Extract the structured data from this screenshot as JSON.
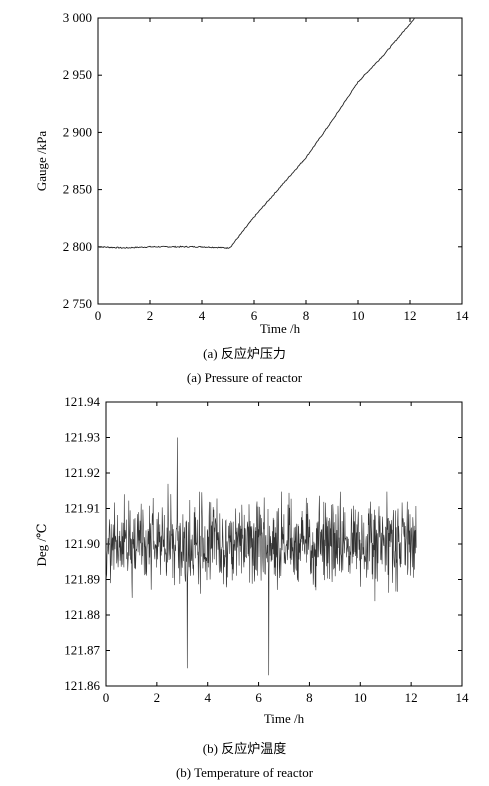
{
  "chart_data": [
    {
      "type": "line",
      "caption_cn": "(a) 反应炉压力",
      "caption_en": "(a) Pressure of reactor",
      "xlabel": "Time /h",
      "ylabel": "Gauge /kPa",
      "xlim": [
        0,
        14
      ],
      "ylim": [
        2750,
        3000
      ],
      "xticks": [
        0,
        2,
        4,
        6,
        8,
        10,
        12,
        14
      ],
      "yticks": [
        2750,
        2800,
        2850,
        2900,
        2950,
        3000
      ],
      "ytick_labels": [
        "2 750",
        "2 800",
        "2 850",
        "2 900",
        "2 950",
        "3 000"
      ],
      "series": [
        {
          "x": [
            0,
            1,
            2,
            3,
            4,
            5,
            5.1,
            6,
            7,
            8,
            9,
            10,
            11,
            12,
            12.2
          ],
          "values": [
            2800,
            2799,
            2800,
            2800,
            2800,
            2799,
            2800,
            2826,
            2852,
            2878,
            2910,
            2944,
            2968,
            2995,
            3000
          ]
        }
      ]
    },
    {
      "type": "line",
      "caption_cn": "(b) 反应炉温度",
      "caption_en": "(b) Temperature of reactor",
      "xlabel": "Time /h",
      "ylabel": "Deg /℃",
      "xlim": [
        0,
        14
      ],
      "ylim": [
        121.86,
        121.94
      ],
      "xticks": [
        0,
        2,
        4,
        6,
        8,
        10,
        12,
        14
      ],
      "yticks": [
        121.86,
        121.87,
        121.88,
        121.89,
        121.9,
        121.91,
        121.92,
        121.93,
        121.94
      ],
      "ytick_labels": [
        "121.86",
        "121.87",
        "121.88",
        "121.89",
        "121.90",
        "121.91",
        "121.92",
        "121.93",
        "121.94"
      ],
      "series": [
        {
          "x": [
            0,
            0.5,
            1.0,
            1.5,
            2.0,
            2.5,
            2.8,
            3.0,
            3.2,
            3.5,
            4.0,
            4.5,
            5.0,
            5.5,
            6.0,
            6.4,
            7.0,
            7.5,
            8.0,
            8.5,
            9.0,
            9.5,
            10.0,
            10.5,
            11.0,
            11.5,
            12.0,
            12.2
          ],
          "values": [
            121.9,
            121.91,
            121.89,
            121.92,
            121.88,
            121.91,
            121.93,
            121.89,
            121.865,
            121.91,
            121.88,
            121.92,
            121.89,
            121.91,
            121.9,
            121.863,
            121.92,
            121.88,
            121.91,
            121.89,
            121.92,
            121.88,
            121.91,
            121.89,
            121.9,
            121.88,
            121.92,
            121.89
          ],
          "mean": 121.9,
          "noise_note": "dense high-frequency fluctuation around mean"
        }
      ]
    }
  ]
}
